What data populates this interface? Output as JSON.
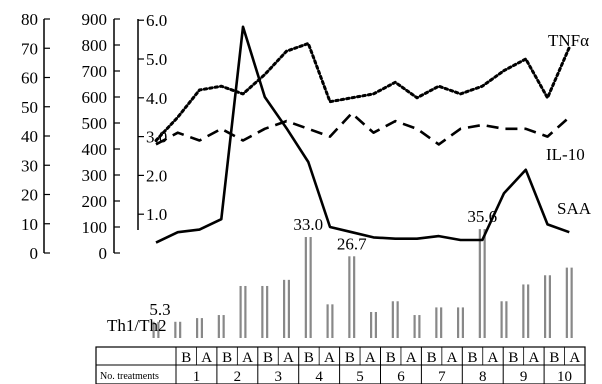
{
  "chart_data": {
    "type": "line",
    "categories": [
      "1B",
      "1A",
      "2B",
      "2A",
      "3B",
      "3A",
      "4B",
      "4A",
      "5B",
      "5A",
      "6B",
      "6A",
      "7B",
      "7A",
      "8B",
      "8A",
      "9B",
      "9A",
      "10B",
      "10A"
    ],
    "treatments": [
      "1",
      "2",
      "3",
      "4",
      "5",
      "6",
      "7",
      "8",
      "9",
      "10"
    ],
    "phases": [
      "B",
      "A"
    ],
    "table_header": "No. treatments",
    "axes": [
      {
        "id": "axis-1",
        "ylim": [
          0,
          80
        ],
        "ticks": [
          "0",
          "10",
          "20",
          "30",
          "40",
          "50",
          "60",
          "70",
          "80"
        ]
      },
      {
        "id": "axis-2",
        "ylim": [
          0,
          900
        ],
        "ticks": [
          "0",
          "100",
          "200",
          "300",
          "400",
          "500",
          "600",
          "700",
          "800",
          "900"
        ]
      },
      {
        "id": "axis-3",
        "ylim": [
          0,
          6.0
        ],
        "ticks": [
          "1.0",
          "2.0",
          "3.0",
          "4.0",
          "5.0",
          "6.0"
        ]
      }
    ],
    "series": [
      {
        "name": "TNFα",
        "style": "dotted",
        "axis": "axis-3",
        "values": [
          2.9,
          3.5,
          4.2,
          4.3,
          4.1,
          4.6,
          5.2,
          5.4,
          3.9,
          4.0,
          4.1,
          4.4,
          4.0,
          4.3,
          4.1,
          4.3,
          4.7,
          5.0,
          4.0,
          5.3
        ]
      },
      {
        "name": "IL-10",
        "style": "dashed",
        "axis": "axis-3",
        "values": [
          2.8,
          3.1,
          2.9,
          3.2,
          2.9,
          3.2,
          3.4,
          3.2,
          3.0,
          3.6,
          3.1,
          3.4,
          3.2,
          2.8,
          3.2,
          3.3,
          3.2,
          3.2,
          3.0,
          3.5
        ]
      },
      {
        "name": "SAA",
        "style": "solid",
        "axis": "axis-2",
        "values": [
          40,
          80,
          90,
          130,
          870,
          600,
          480,
          350,
          100,
          80,
          60,
          55,
          55,
          65,
          50,
          50,
          230,
          320,
          110,
          80
        ]
      }
    ],
    "bars": {
      "name": "Th1/Th2",
      "values": [
        5.3,
        5.3,
        6.5,
        7.5,
        17.0,
        17.0,
        19.0,
        33.0,
        11.0,
        26.7,
        8.5,
        12.0,
        7.5,
        10.0,
        10.0,
        35.6,
        12.0,
        17.5,
        20.5,
        23.0
      ]
    },
    "annotations": [
      "5.3",
      "33.0",
      "26.7",
      "35.6"
    ]
  }
}
